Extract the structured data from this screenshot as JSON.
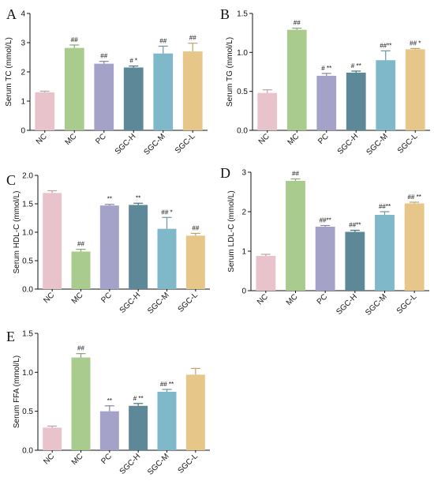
{
  "colors": {
    "NC": "#e8c3cb",
    "MC": "#aacb8e",
    "PC": "#a5a2c9",
    "SGC-H": "#5d8898",
    "SGC-M": "#7fb8c8",
    "SGC-L": "#e6c789"
  },
  "chart_data": [
    {
      "type": "bar",
      "panel_label": "A",
      "ylabel": "Serum TC (mmol/L)",
      "ylim": [
        0,
        4
      ],
      "yticks": [
        "0",
        "1",
        "2",
        "3",
        "4"
      ],
      "categories": [
        "NC",
        "MC",
        "PC",
        "SGC-H",
        "SGC-M",
        "SGC-L"
      ],
      "values": [
        1.3,
        2.82,
        2.28,
        2.15,
        2.63,
        2.7
      ],
      "errors": [
        0.04,
        0.1,
        0.08,
        0.05,
        0.25,
        0.28
      ],
      "annotations": [
        "",
        "##",
        "##",
        "# *",
        "##",
        "##"
      ]
    },
    {
      "type": "bar",
      "panel_label": "B",
      "ylabel": "Serum TG (mmol/L)",
      "ylim": [
        0,
        1.5
      ],
      "yticks": [
        "0.0",
        "0.5",
        "1.0",
        "1.5"
      ],
      "categories": [
        "NC",
        "MC",
        "PC",
        "SGC-H",
        "SGC-M",
        "SGC-L"
      ],
      "values": [
        0.48,
        1.29,
        0.7,
        0.74,
        0.9,
        1.04
      ],
      "errors": [
        0.04,
        0.02,
        0.03,
        0.02,
        0.12,
        0.01
      ],
      "annotations": [
        "",
        "##",
        "# **",
        "# **",
        "##**",
        "## *"
      ]
    },
    {
      "type": "bar",
      "panel_label": "C",
      "ylabel": "Serum HDL-C (mmol/L)",
      "ylim": [
        0,
        2.0
      ],
      "yticks": [
        "0.0",
        "0.5",
        "1.0",
        "1.5",
        "2.0"
      ],
      "categories": [
        "NC",
        "MC",
        "PC",
        "SGC-H",
        "SGC-M",
        "SGC-L"
      ],
      "values": [
        1.69,
        0.66,
        1.47,
        1.48,
        1.06,
        0.94
      ],
      "errors": [
        0.04,
        0.04,
        0.02,
        0.03,
        0.2,
        0.04
      ],
      "annotations": [
        "",
        "##",
        "**",
        "**",
        "## *",
        "##"
      ]
    },
    {
      "type": "bar",
      "panel_label": "D",
      "ylabel": "Serum LDL-C (mmol/L)",
      "ylim": [
        0,
        3
      ],
      "yticks": [
        "0",
        "1",
        "2",
        "3"
      ],
      "categories": [
        "NC",
        "MC",
        "PC",
        "SGC-H",
        "SGC-M",
        "SGC-L"
      ],
      "values": [
        0.88,
        2.78,
        1.62,
        1.49,
        1.92,
        2.21
      ],
      "errors": [
        0.04,
        0.05,
        0.03,
        0.04,
        0.08,
        0.03
      ],
      "annotations": [
        "",
        "##",
        "##**",
        "##**",
        "##**",
        "## **"
      ]
    },
    {
      "type": "bar",
      "panel_label": "E",
      "ylabel": "Serum FFA (mmol/L)",
      "ylim": [
        0,
        1.5
      ],
      "yticks": [
        "0.0",
        "0.5",
        "1.0",
        "1.5"
      ],
      "categories": [
        "NC",
        "MC",
        "PC",
        "SGC-H",
        "SGC-M",
        "SGC-L"
      ],
      "values": [
        0.29,
        1.19,
        0.5,
        0.57,
        0.75,
        0.97
      ],
      "errors": [
        0.02,
        0.05,
        0.07,
        0.03,
        0.03,
        0.08
      ],
      "annotations": [
        "",
        "##",
        "**",
        "# **",
        "## **",
        ""
      ]
    }
  ]
}
